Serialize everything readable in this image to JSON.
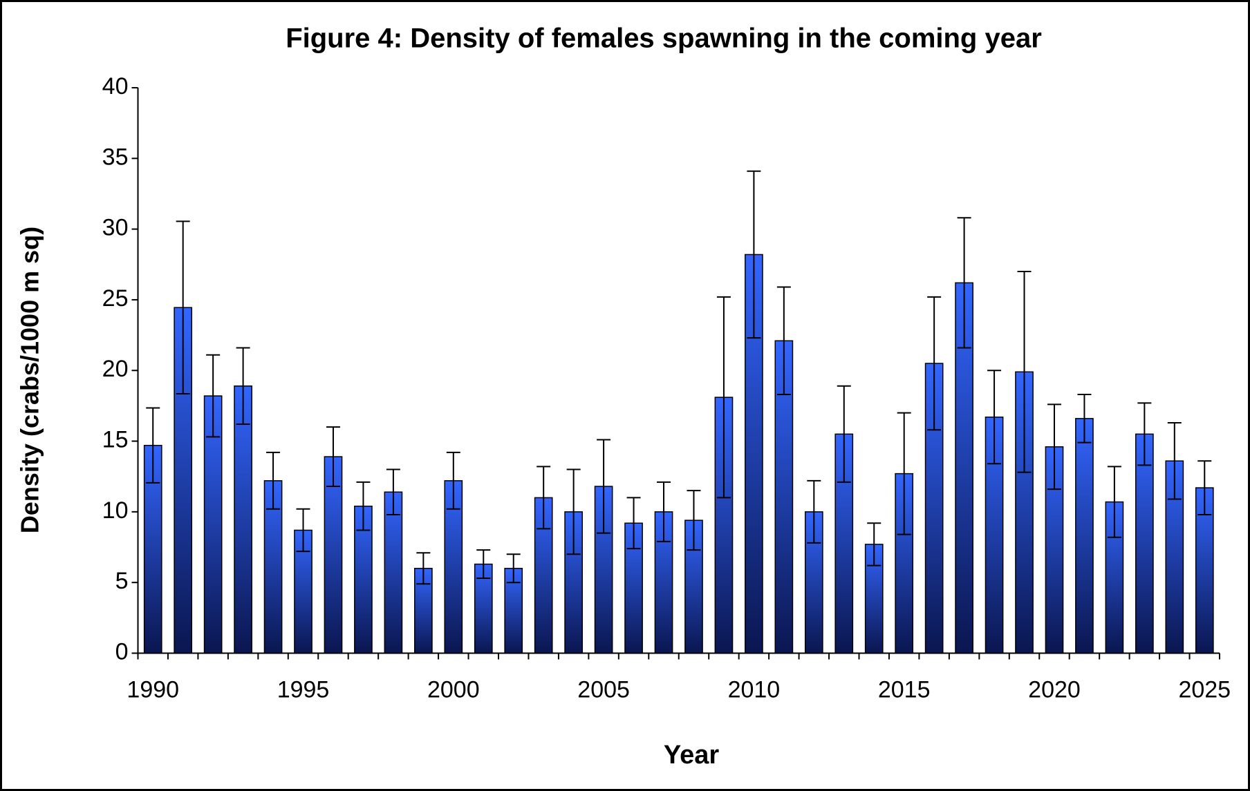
{
  "chart_data": {
    "type": "bar",
    "title": "Figure 4: Density of females spawning in the coming year",
    "x_label": "Year",
    "y_label": "Density (crabs/1000 m sq)",
    "categories": [
      "1990",
      null,
      null,
      null,
      null,
      "1995",
      null,
      null,
      null,
      null,
      "2000",
      null,
      null,
      null,
      null,
      "2005",
      null,
      null,
      null,
      null,
      "2010",
      null,
      null,
      null,
      null,
      "2015",
      null,
      null,
      null,
      null,
      "2020",
      null,
      null,
      null,
      null,
      "2025"
    ],
    "values": [
      14.7,
      24.45,
      18.2,
      18.9,
      12.2,
      8.7,
      13.9,
      10.4,
      11.4,
      6.0,
      12.2,
      6.3,
      6.0,
      11.0,
      10.0,
      11.8,
      9.2,
      10.0,
      9.4,
      18.1,
      28.2,
      22.1,
      10.0,
      15.5,
      7.7,
      12.7,
      20.5,
      26.2,
      16.7,
      19.9,
      14.6,
      16.6,
      10.7,
      15.5,
      13.6,
      11.7
    ],
    "errors": [
      2.65,
      6.1,
      2.9,
      2.7,
      2.0,
      1.5,
      2.1,
      1.7,
      1.6,
      1.1,
      2.0,
      1.0,
      1.0,
      2.2,
      3.0,
      3.3,
      1.8,
      2.1,
      2.1,
      7.1,
      5.9,
      3.8,
      2.2,
      3.4,
      1.5,
      4.3,
      4.7,
      4.6,
      3.3,
      7.1,
      3.0,
      1.7,
      2.5,
      2.2,
      2.7,
      1.9
    ],
    "color": "#3366ff",
    "ylim": [
      0,
      40
    ],
    "yticks": [
      0,
      5,
      10,
      15,
      20,
      25,
      30,
      35,
      40
    ],
    "grid": false
  }
}
